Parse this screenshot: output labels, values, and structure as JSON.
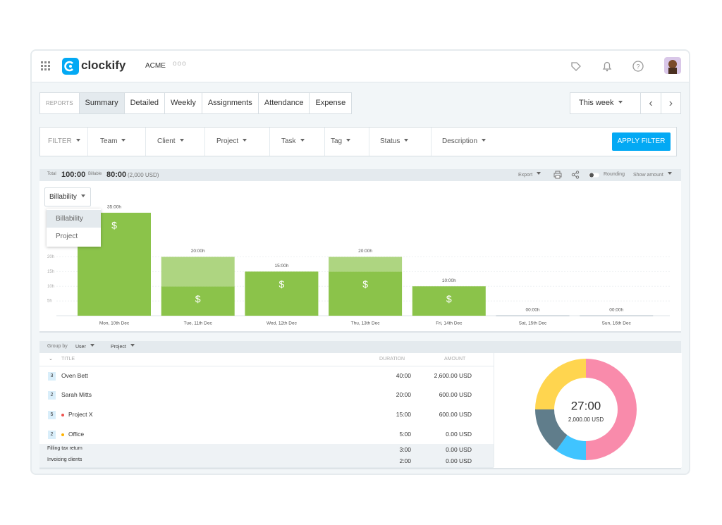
{
  "header": {
    "brand": "clockify",
    "workspace": "ACME"
  },
  "tabs": [
    "REPORTS",
    "Summary",
    "Detailed",
    "Weekly",
    "Assignments",
    "Attendance",
    "Expense"
  ],
  "active_tab": 1,
  "date_range": {
    "label": "This week"
  },
  "filters": {
    "items": [
      "FILTER",
      "Team",
      "Client",
      "Project",
      "Task",
      "Tag",
      "Status",
      "Description"
    ],
    "apply": "APPLY FILTER"
  },
  "totals": {
    "total_label": "Total",
    "total": "100:00",
    "billable_label": "Billable",
    "billable": "80:00",
    "amount": "(2,000 USD)"
  },
  "toolbar": {
    "export": "Export",
    "rounding": "Rounding",
    "show_amount": "Show amount"
  },
  "chart_menu": {
    "selected": "Billability",
    "options": [
      "Billability",
      "Project"
    ]
  },
  "chart_data": {
    "type": "bar",
    "stacked": true,
    "categories": [
      "Mon, 10th Dec",
      "Tue, 11th Dec",
      "Wed, 12th Dec",
      "Thu, 13th Dec",
      "Fri, 14th Dec",
      "Sat, 15th Dec",
      "Sun, 16th Dec"
    ],
    "series": [
      {
        "color": "#8bc34a",
        "values": [
          35,
          10,
          15,
          15,
          10,
          0,
          0
        ]
      },
      {
        "color": "#aed581",
        "values": [
          0,
          10,
          0,
          5,
          0,
          0,
          0
        ]
      }
    ],
    "totals": [
      35,
      20,
      15,
      20,
      10,
      0,
      0
    ],
    "total_labels": [
      "35:00h",
      "20:00h",
      "15:00h",
      "20:00h",
      "10:00h",
      "00:00h",
      "00:00h"
    ],
    "symbol": "$",
    "ylim": [
      0,
      40
    ],
    "yticks": [
      {
        "value": 5,
        "label": "5h"
      },
      {
        "value": 10,
        "label": "10h"
      },
      {
        "value": 15,
        "label": "15h"
      },
      {
        "value": 20,
        "label": "20h"
      }
    ],
    "grid": true
  },
  "table": {
    "group_by": {
      "label": "Group by",
      "options": [
        "User",
        "Project"
      ]
    },
    "columns": [
      "TITLE",
      "DURATION",
      "AMOUNT"
    ],
    "rows": [
      {
        "count": "3",
        "title": "Oven Bett",
        "duration": "40:00",
        "amount": "2,600.00 USD"
      },
      {
        "count": "2",
        "title": "Sarah Mitts",
        "duration": "20:00",
        "amount": "600.00 USD"
      },
      {
        "count": "5",
        "title": "Project X",
        "dot": "#ef5350",
        "duration": "15:00",
        "amount": "600.00 USD"
      },
      {
        "count": "2",
        "title": "Office",
        "dot": "#ffb300",
        "duration": "5:00",
        "amount": "0.00 USD"
      },
      {
        "title": "Filling tax return",
        "duration": "3:00",
        "amount": "0.00 USD"
      },
      {
        "title": "Invoicing clients",
        "duration": "2:00",
        "amount": "0.00 USD"
      }
    ]
  },
  "summary_chart": {
    "type": "pie",
    "values": [
      50,
      10,
      15,
      25
    ],
    "colors": [
      "#f98bab",
      "#40c4ff",
      "#607d8b",
      "#ffd54f"
    ],
    "center_value": "27:00",
    "center_amount": "2,000.00 USD"
  }
}
